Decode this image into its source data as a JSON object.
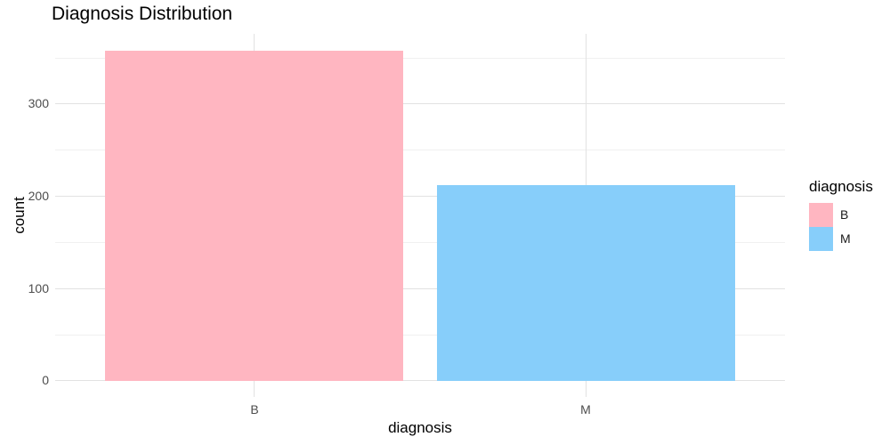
{
  "chart_data": {
    "type": "bar",
    "title": "Diagnosis Distribution",
    "xlabel": "diagnosis",
    "ylabel": "count",
    "categories": [
      "B",
      "M"
    ],
    "values": [
      357,
      212
    ],
    "series_colors": [
      "#FFB6C1",
      "#87CEFA"
    ],
    "ylim": [
      0,
      375
    ],
    "y_major_ticks": [
      "0",
      "100",
      "200",
      "300"
    ],
    "y_minor_gridlines": [
      50,
      150,
      250,
      350
    ],
    "grid": "on",
    "background": "#ffffff",
    "gridline_color": "#e2e2e2",
    "legend": {
      "title": "diagnosis",
      "position": "right",
      "entries": [
        {
          "label": "B",
          "color": "#FFB6C1"
        },
        {
          "label": "M",
          "color": "#87CEFA"
        }
      ]
    }
  }
}
